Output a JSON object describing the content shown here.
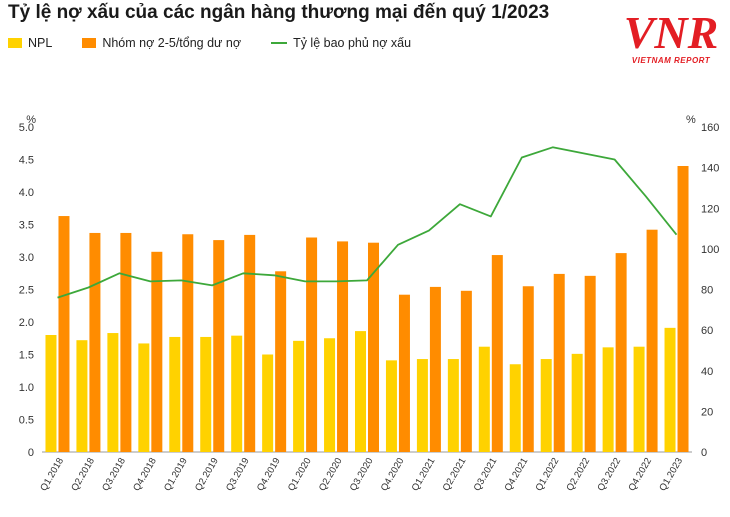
{
  "title": "Tỷ lệ nợ xấu của các ngân hàng thương mại đến quý 1/2023",
  "logo": {
    "text": "VIETNAMREPORT",
    "subtitle": "VIETNAM REPORT"
  },
  "colors": {
    "npl": "#FFD200",
    "group25": "#FF8C00",
    "coverage": "#3DA83A"
  },
  "chart_data": {
    "type": "bar",
    "categories": [
      "Q1.2018",
      "Q2.2018",
      "Q3.2018",
      "Q4.2018",
      "Q1.2019",
      "Q2.2019",
      "Q3.2019",
      "Q4.2019",
      "Q1.2020",
      "Q2.2020",
      "Q3.2020",
      "Q4.2020",
      "Q1.2021",
      "Q2.2021",
      "Q3.2021",
      "Q4.2021",
      "Q1.2022",
      "Q2.2022",
      "Q3.2022",
      "Q4.2022",
      "Q1.2023"
    ],
    "series": [
      {
        "name": "NPL",
        "type": "bar",
        "axis": "left",
        "color": "#FFD200",
        "values": [
          1.8,
          1.72,
          1.83,
          1.67,
          1.77,
          1.77,
          1.79,
          1.5,
          1.71,
          1.75,
          1.86,
          1.41,
          1.43,
          1.43,
          1.62,
          1.35,
          1.43,
          1.51,
          1.61,
          1.62,
          1.91
        ]
      },
      {
        "name": "Nhóm nợ 2-5/tổng dư nợ",
        "type": "bar",
        "axis": "left",
        "color": "#FF8C00",
        "values": [
          3.63,
          3.37,
          3.37,
          3.08,
          3.35,
          3.26,
          3.34,
          2.78,
          3.3,
          3.24,
          3.22,
          2.42,
          2.54,
          2.48,
          3.03,
          2.55,
          2.74,
          2.71,
          3.06,
          3.42,
          4.4
        ]
      },
      {
        "name": "Tỷ lệ bao phủ nợ xấu",
        "type": "line",
        "axis": "right",
        "color": "#3DA83A",
        "values": [
          76,
          81,
          88,
          84,
          84.5,
          82,
          88,
          87,
          84,
          84,
          84.5,
          102,
          109,
          122,
          116,
          145,
          150,
          147,
          144,
          126,
          107
        ]
      }
    ],
    "y_left": {
      "unit": "%",
      "range": [
        0,
        5
      ],
      "ticks": [
        "0",
        "0.5",
        "1.0",
        "1.5",
        "2.0",
        "2.5",
        "3.0",
        "3.5",
        "4.0",
        "4.5",
        "5.0"
      ]
    },
    "y_right": {
      "unit": "%",
      "range": [
        0,
        160
      ],
      "ticks": [
        "0",
        "20",
        "40",
        "60",
        "80",
        "100",
        "120",
        "140",
        "160"
      ]
    },
    "grid": false,
    "legend_position": "top-left"
  }
}
